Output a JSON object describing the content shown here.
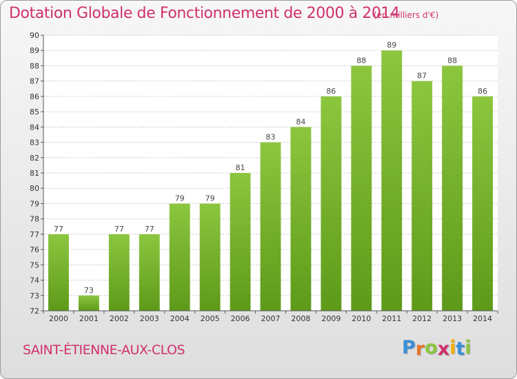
{
  "chart_data": {
    "type": "bar",
    "title": "Dotation Globale de Fonctionnement de 2000 à 2014",
    "subtitle": "(en milliers d'€)",
    "categories": [
      "2000",
      "2001",
      "2002",
      "2003",
      "2004",
      "2005",
      "2006",
      "2007",
      "2008",
      "2009",
      "2010",
      "2011",
      "2012",
      "2013",
      "2014"
    ],
    "values": [
      77,
      73,
      77,
      77,
      79,
      79,
      81,
      83,
      84,
      86,
      88,
      89,
      87,
      88,
      86
    ],
    "ylim": [
      72,
      90
    ],
    "yticks": [
      72,
      73,
      74,
      75,
      76,
      77,
      78,
      79,
      80,
      81,
      82,
      83,
      84,
      85,
      86,
      87,
      88,
      89,
      90
    ],
    "xlabel": "",
    "ylabel": "",
    "grid": true,
    "bar_color": "#8cc63f",
    "bar_color_dark": "#5e9a1a"
  },
  "footer": {
    "commune": "SAINT-ÉTIENNE-AUX-CLOS",
    "logo_letters": [
      "P",
      "r",
      "o",
      "x",
      "i",
      "t",
      "i"
    ],
    "logo_colors": [
      "#3a8fd8",
      "#e8742a",
      "#8cc63f",
      "#d0306c",
      "#f2b000",
      "#3a8fd8",
      "#8cc63f"
    ]
  },
  "colors": {
    "accent": "#d0306c"
  }
}
